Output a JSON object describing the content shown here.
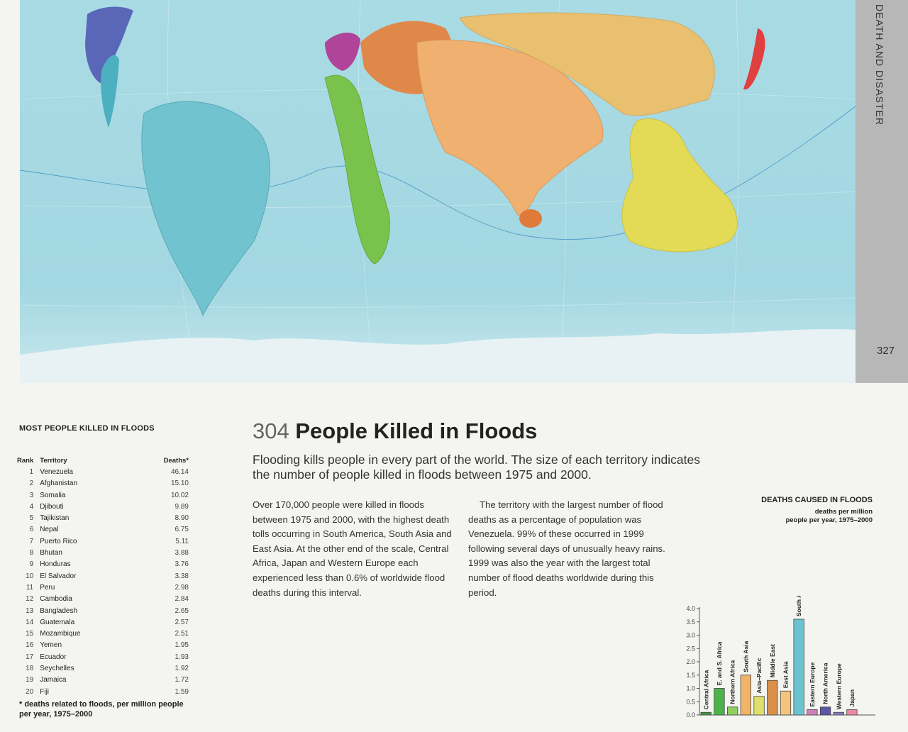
{
  "side": {
    "section": "DEATH AND DISASTER",
    "page_number": "327"
  },
  "map": {
    "type": "cartogram",
    "colors": {
      "ocean": "#9fd5df",
      "ocean_light": "#c2e6ec",
      "ice": "#e9f2f4",
      "south_america": "#6fc2ce",
      "north_america": "#5a67b8",
      "central_america": "#4db0c0",
      "europe": "#b0439a",
      "africa": "#79c34c",
      "middle_east": "#e09a56",
      "south_asia": "#f0b070",
      "east_asia": "#e8c070",
      "asia_pacific": "#e3da56",
      "japan": "#e04040"
    }
  },
  "table": {
    "title": "MOST PEOPLE KILLED IN FLOODS",
    "headers": {
      "rank": "Rank",
      "territory": "Territory",
      "deaths": "Deaths*"
    },
    "rows": [
      {
        "rank": "1",
        "territory": "Venezuela",
        "deaths": "46.14"
      },
      {
        "rank": "2",
        "territory": "Afghanistan",
        "deaths": "15.10"
      },
      {
        "rank": "3",
        "territory": "Somalia",
        "deaths": "10.02"
      },
      {
        "rank": "4",
        "territory": "Djibouti",
        "deaths": "9.89"
      },
      {
        "rank": "5",
        "territory": "Tajikistan",
        "deaths": "8.90"
      },
      {
        "rank": "6",
        "territory": "Nepal",
        "deaths": "6.75"
      },
      {
        "rank": "7",
        "territory": "Puerto Rico",
        "deaths": "5.11"
      },
      {
        "rank": "8",
        "territory": "Bhutan",
        "deaths": "3.88"
      },
      {
        "rank": "9",
        "territory": "Honduras",
        "deaths": "3.76"
      },
      {
        "rank": "10",
        "territory": "El Salvador",
        "deaths": "3.38"
      },
      {
        "rank": "11",
        "territory": "Peru",
        "deaths": "2.98"
      },
      {
        "rank": "12",
        "territory": "Cambodia",
        "deaths": "2.84"
      },
      {
        "rank": "13",
        "territory": "Bangladesh",
        "deaths": "2.65"
      },
      {
        "rank": "14",
        "territory": "Guatemala",
        "deaths": "2.57"
      },
      {
        "rank": "15",
        "territory": "Mozambique",
        "deaths": "2.51"
      },
      {
        "rank": "16",
        "territory": "Yemen",
        "deaths": "1.95"
      },
      {
        "rank": "17",
        "territory": "Ecuador",
        "deaths": "1.93"
      },
      {
        "rank": "18",
        "territory": "Seychelles",
        "deaths": "1.92"
      },
      {
        "rank": "19",
        "territory": "Jamaica",
        "deaths": "1.72"
      },
      {
        "rank": "20",
        "territory": "Fiji",
        "deaths": "1.59"
      }
    ],
    "footnote": "* deaths related to floods, per million people per year, 1975–2000"
  },
  "article": {
    "number": "304",
    "title": "People Killed in Floods",
    "subtitle": "Flooding kills people in every part of the world. The size of each territory indicates the number of people killed in floods between 1975 and 2000.",
    "col1": "Over 170,000 people were killed in floods between 1975 and 2000, with the highest death tolls occurring in South America, South Asia and East Asia. At the other end of the scale, Central Africa, Japan and Western Europe each experienced less than 0.6% of worldwide flood deaths during this interval.",
    "col2": "The territory with the largest number of flood deaths as a percentage of population was Venezuela. 99% of these occurred in 1999 following several days of unusually heavy rains. 1999 was also the year with the largest total number of flood deaths worldwide during this period."
  },
  "chart_data": {
    "type": "bar",
    "title": "DEATHS CAUSED IN FLOODS",
    "subtitle_lines": [
      "deaths per million",
      "people per year, 1975–2000"
    ],
    "categories": [
      "Central Africa",
      "E. and S. Africa",
      "Northern Africa",
      "South Asia",
      "Asia–Pacific",
      "Middle East",
      "East Asia",
      "South America",
      "Eastern Europe",
      "North America",
      "Western Europe",
      "Japan"
    ],
    "values": [
      0.1,
      1.0,
      0.3,
      1.5,
      0.7,
      1.3,
      0.9,
      3.6,
      0.2,
      0.3,
      0.1,
      0.2
    ],
    "colors": [
      "#3d9a3d",
      "#4cb34c",
      "#8fcf5e",
      "#f0b36a",
      "#dfe069",
      "#d9904a",
      "#f2c57a",
      "#6cc4d0",
      "#cf7fbd",
      "#5c55a8",
      "#8d7bc2",
      "#e98ba3"
    ],
    "ylim": [
      0,
      4.0
    ],
    "yticks": [
      "0.0",
      "0.5",
      "1.0",
      "1.5",
      "2.0",
      "2.5",
      "3.0",
      "3.5",
      "4.0"
    ]
  }
}
